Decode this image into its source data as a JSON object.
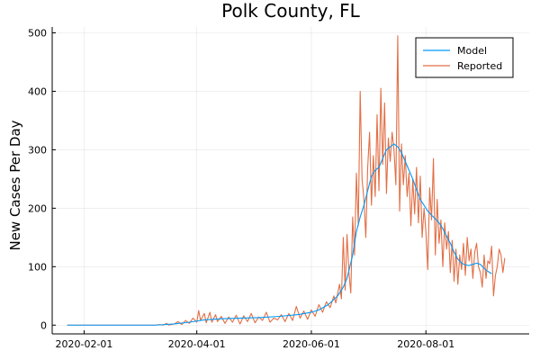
{
  "chart_data": {
    "type": "line",
    "title": "Polk County, FL",
    "xlabel": "",
    "ylabel": "New Cases Per Day",
    "xlim": [
      "2020-01-15",
      "2020-09-25"
    ],
    "ylim": [
      -15,
      510
    ],
    "x_ticks": [
      "2020-02-01",
      "2020-04-01",
      "2020-06-01",
      "2020-08-01"
    ],
    "y_ticks": [
      0,
      100,
      200,
      300,
      400,
      500
    ],
    "grid": true,
    "legend": "top-right",
    "series": [
      {
        "name": "Model",
        "color": "#009AFA",
        "points": [
          [
            "2020-01-23",
            0
          ],
          [
            "2020-02-15",
            0
          ],
          [
            "2020-03-10",
            0
          ],
          [
            "2020-03-20",
            2
          ],
          [
            "2020-03-28",
            5
          ],
          [
            "2020-04-05",
            9
          ],
          [
            "2020-04-15",
            11
          ],
          [
            "2020-04-25",
            12
          ],
          [
            "2020-05-05",
            13
          ],
          [
            "2020-05-15",
            15
          ],
          [
            "2020-05-25",
            18
          ],
          [
            "2020-06-01",
            22
          ],
          [
            "2020-06-05",
            26
          ],
          [
            "2020-06-10",
            35
          ],
          [
            "2020-06-15",
            50
          ],
          [
            "2020-06-18",
            65
          ],
          [
            "2020-06-20",
            80
          ],
          [
            "2020-06-23",
            120
          ],
          [
            "2020-06-25",
            160
          ],
          [
            "2020-06-27",
            185
          ],
          [
            "2020-06-29",
            205
          ],
          [
            "2020-07-01",
            230
          ],
          [
            "2020-07-03",
            255
          ],
          [
            "2020-07-05",
            265
          ],
          [
            "2020-07-07",
            270
          ],
          [
            "2020-07-09",
            285
          ],
          [
            "2020-07-11",
            300
          ],
          [
            "2020-07-13",
            305
          ],
          [
            "2020-07-15",
            310
          ],
          [
            "2020-07-17",
            305
          ],
          [
            "2020-07-19",
            295
          ],
          [
            "2020-07-21",
            280
          ],
          [
            "2020-07-23",
            265
          ],
          [
            "2020-07-25",
            250
          ],
          [
            "2020-07-27",
            232
          ],
          [
            "2020-07-29",
            215
          ],
          [
            "2020-07-31",
            205
          ],
          [
            "2020-08-02",
            195
          ],
          [
            "2020-08-04",
            188
          ],
          [
            "2020-08-06",
            182
          ],
          [
            "2020-08-08",
            175
          ],
          [
            "2020-08-10",
            165
          ],
          [
            "2020-08-12",
            152
          ],
          [
            "2020-08-14",
            140
          ],
          [
            "2020-08-16",
            125
          ],
          [
            "2020-08-18",
            113
          ],
          [
            "2020-08-20",
            106
          ],
          [
            "2020-08-22",
            103
          ],
          [
            "2020-08-24",
            102
          ],
          [
            "2020-08-26",
            104
          ],
          [
            "2020-08-28",
            106
          ],
          [
            "2020-08-30",
            104
          ],
          [
            "2020-09-01",
            97
          ],
          [
            "2020-09-03",
            92
          ],
          [
            "2020-09-05",
            88
          ]
        ]
      },
      {
        "name": "Reported",
        "color": "#E26F46",
        "points": [
          [
            "2020-01-23",
            0
          ],
          [
            "2020-03-10",
            0
          ],
          [
            "2020-03-12",
            1
          ],
          [
            "2020-03-14",
            0
          ],
          [
            "2020-03-16",
            3
          ],
          [
            "2020-03-17",
            0
          ],
          [
            "2020-03-20",
            2
          ],
          [
            "2020-03-22",
            6
          ],
          [
            "2020-03-24",
            1
          ],
          [
            "2020-03-26",
            8
          ],
          [
            "2020-03-28",
            3
          ],
          [
            "2020-03-30",
            12
          ],
          [
            "2020-04-01",
            5
          ],
          [
            "2020-04-02",
            25
          ],
          [
            "2020-04-03",
            8
          ],
          [
            "2020-04-05",
            20
          ],
          [
            "2020-04-06",
            4
          ],
          [
            "2020-04-08",
            22
          ],
          [
            "2020-04-09",
            5
          ],
          [
            "2020-04-11",
            18
          ],
          [
            "2020-04-12",
            6
          ],
          [
            "2020-04-14",
            15
          ],
          [
            "2020-04-16",
            3
          ],
          [
            "2020-04-18",
            14
          ],
          [
            "2020-04-20",
            5
          ],
          [
            "2020-04-22",
            17
          ],
          [
            "2020-04-24",
            2
          ],
          [
            "2020-04-26",
            16
          ],
          [
            "2020-04-28",
            6
          ],
          [
            "2020-04-30",
            20
          ],
          [
            "2020-05-02",
            4
          ],
          [
            "2020-05-04",
            14
          ],
          [
            "2020-05-06",
            8
          ],
          [
            "2020-05-08",
            22
          ],
          [
            "2020-05-10",
            5
          ],
          [
            "2020-05-12",
            12
          ],
          [
            "2020-05-14",
            9
          ],
          [
            "2020-05-16",
            18
          ],
          [
            "2020-05-18",
            6
          ],
          [
            "2020-05-20",
            20
          ],
          [
            "2020-05-22",
            8
          ],
          [
            "2020-05-24",
            32
          ],
          [
            "2020-05-26",
            12
          ],
          [
            "2020-05-28",
            24
          ],
          [
            "2020-05-30",
            10
          ],
          [
            "2020-06-01",
            26
          ],
          [
            "2020-06-03",
            15
          ],
          [
            "2020-06-05",
            35
          ],
          [
            "2020-06-07",
            22
          ],
          [
            "2020-06-09",
            40
          ],
          [
            "2020-06-11",
            30
          ],
          [
            "2020-06-13",
            50
          ],
          [
            "2020-06-14",
            38
          ],
          [
            "2020-06-16",
            70
          ],
          [
            "2020-06-17",
            45
          ],
          [
            "2020-06-18",
            150
          ],
          [
            "2020-06-19",
            60
          ],
          [
            "2020-06-20",
            155
          ],
          [
            "2020-06-21",
            90
          ],
          [
            "2020-06-22",
            55
          ],
          [
            "2020-06-23",
            185
          ],
          [
            "2020-06-24",
            120
          ],
          [
            "2020-06-25",
            260
          ],
          [
            "2020-06-26",
            170
          ],
          [
            "2020-06-27",
            400
          ],
          [
            "2020-06-28",
            250
          ],
          [
            "2020-06-29",
            215
          ],
          [
            "2020-06-30",
            150
          ],
          [
            "2020-07-01",
            270
          ],
          [
            "2020-07-02",
            330
          ],
          [
            "2020-07-03",
            205
          ],
          [
            "2020-07-04",
            290
          ],
          [
            "2020-07-05",
            220
          ],
          [
            "2020-07-06",
            360
          ],
          [
            "2020-07-07",
            230
          ],
          [
            "2020-07-08",
            405
          ],
          [
            "2020-07-09",
            275
          ],
          [
            "2020-07-10",
            380
          ],
          [
            "2020-07-11",
            225
          ],
          [
            "2020-07-12",
            320
          ],
          [
            "2020-07-13",
            280
          ],
          [
            "2020-07-14",
            330
          ],
          [
            "2020-07-15",
            300
          ],
          [
            "2020-07-16",
            240
          ],
          [
            "2020-07-17",
            495
          ],
          [
            "2020-07-18",
            195
          ],
          [
            "2020-07-19",
            310
          ],
          [
            "2020-07-20",
            240
          ],
          [
            "2020-07-21",
            290
          ],
          [
            "2020-07-22",
            220
          ],
          [
            "2020-07-23",
            260
          ],
          [
            "2020-07-24",
            170
          ],
          [
            "2020-07-25",
            250
          ],
          [
            "2020-07-26",
            190
          ],
          [
            "2020-07-27",
            270
          ],
          [
            "2020-07-28",
            175
          ],
          [
            "2020-07-29",
            255
          ],
          [
            "2020-07-30",
            150
          ],
          [
            "2020-07-31",
            200
          ],
          [
            "2020-08-01",
            160
          ],
          [
            "2020-08-02",
            95
          ],
          [
            "2020-08-03",
            235
          ],
          [
            "2020-08-04",
            180
          ],
          [
            "2020-08-05",
            285
          ],
          [
            "2020-08-06",
            120
          ],
          [
            "2020-08-07",
            215
          ],
          [
            "2020-08-08",
            140
          ],
          [
            "2020-08-09",
            180
          ],
          [
            "2020-08-10",
            100
          ],
          [
            "2020-08-11",
            175
          ],
          [
            "2020-08-12",
            130
          ],
          [
            "2020-08-13",
            160
          ],
          [
            "2020-08-14",
            90
          ],
          [
            "2020-08-15",
            145
          ],
          [
            "2020-08-16",
            75
          ],
          [
            "2020-08-17",
            130
          ],
          [
            "2020-08-18",
            70
          ],
          [
            "2020-08-19",
            120
          ],
          [
            "2020-08-20",
            95
          ],
          [
            "2020-08-21",
            140
          ],
          [
            "2020-08-22",
            85
          ],
          [
            "2020-08-23",
            150
          ],
          [
            "2020-08-24",
            110
          ],
          [
            "2020-08-25",
            130
          ],
          [
            "2020-08-26",
            80
          ],
          [
            "2020-08-27",
            125
          ],
          [
            "2020-08-28",
            140
          ],
          [
            "2020-08-29",
            100
          ],
          [
            "2020-08-30",
            90
          ],
          [
            "2020-08-31",
            65
          ],
          [
            "2020-09-01",
            120
          ],
          [
            "2020-09-02",
            80
          ],
          [
            "2020-09-03",
            110
          ],
          [
            "2020-09-04",
            105
          ],
          [
            "2020-09-05",
            135
          ],
          [
            "2020-09-06",
            50
          ],
          [
            "2020-09-07",
            85
          ],
          [
            "2020-09-08",
            100
          ],
          [
            "2020-09-09",
            130
          ],
          [
            "2020-09-10",
            120
          ],
          [
            "2020-09-11",
            90
          ],
          [
            "2020-09-12",
            115
          ]
        ]
      }
    ]
  }
}
